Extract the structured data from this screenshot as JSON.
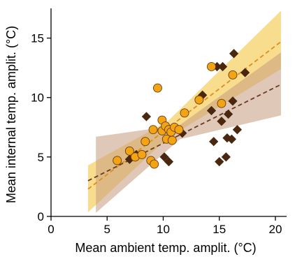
{
  "chart_data": {
    "type": "scatter",
    "xlabel": "Mean ambient temp. amplit. (°C)",
    "ylabel": "Mean internal temp. amplit. (°C)",
    "xlim": [
      0,
      21
    ],
    "ylim": [
      0,
      17.5
    ],
    "xticks": [
      0,
      5,
      10,
      15,
      20
    ],
    "yticks": [
      0,
      5,
      10,
      15
    ],
    "grid": false,
    "legend": "none",
    "series": [
      {
        "marker": "circle",
        "color": "#f2a413",
        "edge": "#6b3a10",
        "points": [
          [
            5.9,
            4.7
          ],
          [
            7.0,
            5.5
          ],
          [
            7.5,
            5.0
          ],
          [
            8.1,
            5.2
          ],
          [
            8.4,
            6.3
          ],
          [
            8.9,
            4.7
          ],
          [
            9.1,
            7.3
          ],
          [
            9.2,
            4.4
          ],
          [
            9.5,
            10.8
          ],
          [
            9.9,
            8.1
          ],
          [
            9.9,
            7.2
          ],
          [
            10.2,
            7.6
          ],
          [
            10.3,
            6.5
          ],
          [
            10.5,
            7.3
          ],
          [
            10.7,
            7.1
          ],
          [
            10.8,
            6.4
          ],
          [
            11.0,
            7.5
          ],
          [
            11.4,
            7.3
          ],
          [
            11.9,
            8.7
          ],
          [
            13.2,
            9.8
          ],
          [
            14.3,
            12.6
          ],
          [
            15.2,
            9.5
          ],
          [
            16.2,
            11.9
          ]
        ]
      },
      {
        "marker": "diamond",
        "color": "#4a2810",
        "points": [
          [
            7.0,
            4.8
          ],
          [
            7.6,
            5.2
          ],
          [
            8.5,
            8.4
          ],
          [
            10.1,
            5.0
          ],
          [
            10.5,
            4.6
          ],
          [
            11.7,
            7.0
          ],
          [
            13.5,
            10.2
          ],
          [
            14.3,
            8.9
          ],
          [
            14.5,
            6.3
          ],
          [
            14.8,
            12.6
          ],
          [
            15.0,
            4.6
          ],
          [
            15.2,
            8.0
          ],
          [
            15.3,
            12.6
          ],
          [
            15.6,
            5.0
          ],
          [
            15.7,
            6.6
          ],
          [
            15.8,
            8.6
          ],
          [
            16.1,
            6.5
          ],
          [
            16.2,
            9.7
          ],
          [
            16.3,
            13.7
          ],
          [
            16.6,
            7.3
          ],
          [
            17.3,
            12.1
          ]
        ]
      }
    ],
    "fits": [
      {
        "line_color": "#e08e1a",
        "band_color": "#f3c84a",
        "band_opacity": 0.62,
        "x_range": [
          3.3,
          20.5
        ],
        "line": [
          [
            3.3,
            2.3
          ],
          [
            20.5,
            14.7
          ]
        ],
        "band_lower": [
          [
            3.3,
            0.35
          ],
          [
            10.4,
            6.6
          ],
          [
            20.5,
            12.4
          ]
        ],
        "band_upper": [
          [
            3.3,
            4.3
          ],
          [
            10.4,
            8.0
          ],
          [
            20.5,
            17.3
          ]
        ]
      },
      {
        "line_color": "#6b3a1e",
        "band_color": "#c79a7d",
        "band_opacity": 0.55,
        "x_range": [
          4.0,
          20.5
        ],
        "line": [
          [
            3.3,
            3.0
          ],
          [
            20.5,
            11.1
          ]
        ],
        "band_lower": [
          [
            4.0,
            0.3
          ],
          [
            11.5,
            6.5
          ],
          [
            20.5,
            8.5
          ]
        ],
        "band_upper": [
          [
            4.0,
            6.7
          ],
          [
            11.5,
            7.7
          ],
          [
            20.5,
            13.8
          ]
        ]
      }
    ]
  }
}
